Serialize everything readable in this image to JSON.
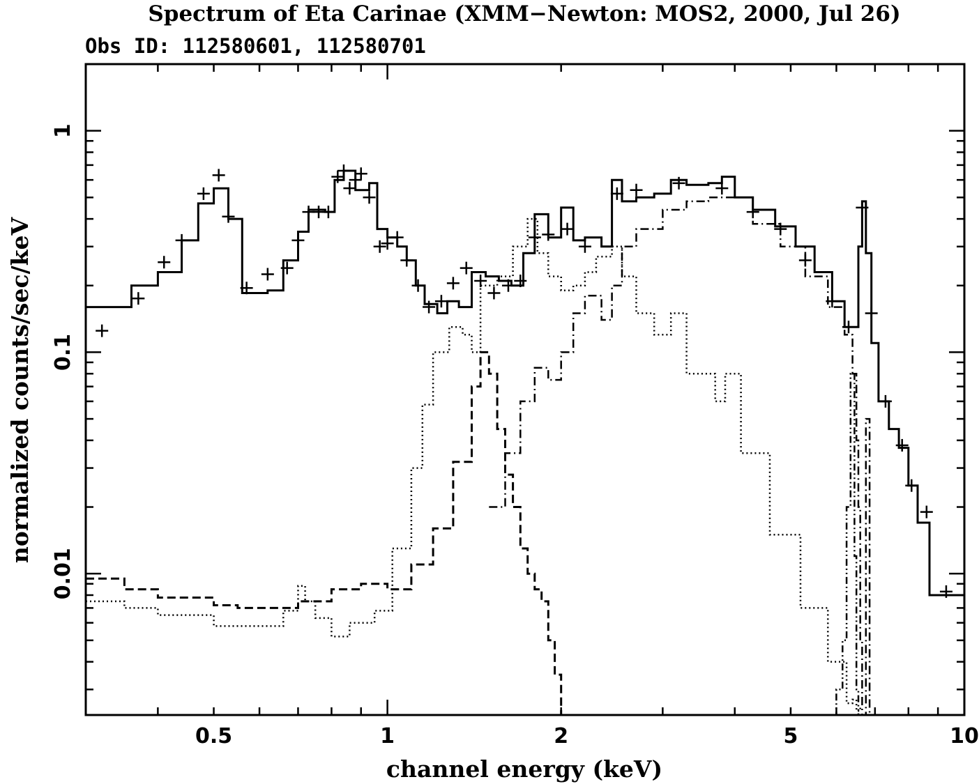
{
  "chart_data": {
    "type": "line",
    "title": "Spectrum of Eta Carinae (XMM−Newton: MOS2, 2000, Jul 26)",
    "subtitle": "Obs ID: 112580601, 112580701",
    "xlabel": "channel energy (keV)",
    "ylabel": "normalized counts/sec/keV",
    "x_scale": "log",
    "y_scale": "log",
    "xlim": [
      0.3,
      10
    ],
    "ylim": [
      0.0023,
      2
    ],
    "x_ticks": [
      {
        "value": 0.5,
        "label": "0.5"
      },
      {
        "value": 1,
        "label": "1"
      },
      {
        "value": 2,
        "label": "2"
      },
      {
        "value": 5,
        "label": "5"
      },
      {
        "value": 10,
        "label": "10"
      }
    ],
    "y_ticks": [
      {
        "value": 0.01,
        "label": "0.01"
      },
      {
        "value": 0.1,
        "label": "0.1"
      },
      {
        "value": 1,
        "label": "1"
      }
    ],
    "grid": false,
    "legend": "none",
    "data_points": [
      [
        0.32,
        0.125
      ],
      [
        0.37,
        0.175
      ],
      [
        0.41,
        0.255
      ],
      [
        0.44,
        0.32
      ],
      [
        0.48,
        0.52
      ],
      [
        0.51,
        0.63
      ],
      [
        0.53,
        0.41
      ],
      [
        0.57,
        0.195
      ],
      [
        0.62,
        0.225
      ],
      [
        0.67,
        0.24
      ],
      [
        0.7,
        0.32
      ],
      [
        0.73,
        0.43
      ],
      [
        0.76,
        0.43
      ],
      [
        0.79,
        0.43
      ],
      [
        0.82,
        0.62
      ],
      [
        0.84,
        0.66
      ],
      [
        0.86,
        0.55
      ],
      [
        0.88,
        0.6
      ],
      [
        0.9,
        0.64
      ],
      [
        0.93,
        0.5
      ],
      [
        0.97,
        0.3
      ],
      [
        1.0,
        0.31
      ],
      [
        1.04,
        0.33
      ],
      [
        1.08,
        0.26
      ],
      [
        1.13,
        0.2
      ],
      [
        1.18,
        0.16
      ],
      [
        1.24,
        0.17
      ],
      [
        1.3,
        0.205
      ],
      [
        1.37,
        0.24
      ],
      [
        1.45,
        0.21
      ],
      [
        1.53,
        0.185
      ],
      [
        1.62,
        0.2
      ],
      [
        1.7,
        0.21
      ],
      [
        1.8,
        0.33
      ],
      [
        1.9,
        0.34
      ],
      [
        2.05,
        0.36
      ],
      [
        2.2,
        0.3
      ],
      [
        2.5,
        0.52
      ],
      [
        2.7,
        0.54
      ],
      [
        3.2,
        0.58
      ],
      [
        3.8,
        0.55
      ],
      [
        4.3,
        0.43
      ],
      [
        4.8,
        0.36
      ],
      [
        5.3,
        0.26
      ],
      [
        5.9,
        0.17
      ],
      [
        6.3,
        0.13
      ],
      [
        6.65,
        0.45
      ],
      [
        6.9,
        0.15
      ],
      [
        7.3,
        0.06
      ],
      [
        7.8,
        0.038
      ],
      [
        8.1,
        0.025
      ],
      [
        8.6,
        0.019
      ],
      [
        9.3,
        0.0083
      ]
    ],
    "series": [
      {
        "style": "solid",
        "x": [
          0.3,
          0.36,
          0.4,
          0.44,
          0.47,
          0.5,
          0.53,
          0.56,
          0.62,
          0.66,
          0.7,
          0.73,
          0.78,
          0.81,
          0.84,
          0.88,
          0.93,
          0.96,
          1.0,
          1.04,
          1.08,
          1.12,
          1.16,
          1.22,
          1.27,
          1.33,
          1.4,
          1.48,
          1.56,
          1.64,
          1.72,
          1.8,
          1.9,
          2.0,
          2.1,
          2.2,
          2.35,
          2.45,
          2.55,
          2.7,
          2.9,
          3.1,
          3.3,
          3.6,
          3.8,
          4.0,
          4.3,
          4.7,
          5.1,
          5.5,
          5.9,
          6.2,
          6.4,
          6.55,
          6.65,
          6.75,
          6.9,
          7.1,
          7.4,
          7.7,
          8.0,
          8.3,
          8.7,
          9.0,
          10.0
        ],
        "y": [
          0.16,
          0.2,
          0.23,
          0.32,
          0.47,
          0.55,
          0.4,
          0.185,
          0.19,
          0.26,
          0.35,
          0.44,
          0.43,
          0.6,
          0.66,
          0.54,
          0.58,
          0.36,
          0.33,
          0.3,
          0.26,
          0.2,
          0.165,
          0.15,
          0.17,
          0.16,
          0.23,
          0.22,
          0.21,
          0.2,
          0.28,
          0.42,
          0.33,
          0.45,
          0.32,
          0.33,
          0.3,
          0.6,
          0.48,
          0.5,
          0.52,
          0.6,
          0.57,
          0.58,
          0.62,
          0.5,
          0.44,
          0.37,
          0.3,
          0.23,
          0.17,
          0.13,
          0.13,
          0.3,
          0.48,
          0.28,
          0.11,
          0.06,
          0.045,
          0.037,
          0.025,
          0.017,
          0.008,
          0.008,
          0.008
        ]
      },
      {
        "style": "dotted",
        "x": [
          0.3,
          0.35,
          0.4,
          0.5,
          0.55,
          0.62,
          0.66,
          0.7,
          0.72,
          0.75,
          0.8,
          0.86,
          0.95,
          1.02,
          1.1,
          1.15,
          1.2,
          1.28,
          1.35,
          1.4,
          1.45,
          1.55,
          1.65,
          1.75,
          1.82,
          1.9,
          2.0,
          2.1,
          2.2,
          2.3,
          2.45,
          2.55,
          2.7,
          2.9,
          3.1,
          3.3,
          3.7,
          3.85,
          4.1,
          4.6,
          5.2,
          5.8,
          6.25,
          6.4,
          6.5,
          6.6
        ],
        "y": [
          0.0075,
          0.007,
          0.0065,
          0.0058,
          0.0058,
          0.0058,
          0.0068,
          0.0088,
          0.0075,
          0.0063,
          0.0052,
          0.006,
          0.0068,
          0.013,
          0.03,
          0.058,
          0.1,
          0.13,
          0.12,
          0.1,
          0.2,
          0.22,
          0.3,
          0.4,
          0.28,
          0.22,
          0.19,
          0.2,
          0.23,
          0.27,
          0.3,
          0.22,
          0.15,
          0.12,
          0.15,
          0.08,
          0.06,
          0.08,
          0.035,
          0.015,
          0.007,
          0.004,
          0.0026,
          0.0027,
          0.0024,
          0.0025
        ]
      },
      {
        "style": "dashed",
        "x": [
          0.3,
          0.35,
          0.4,
          0.5,
          0.55,
          0.62,
          0.7,
          0.8,
          0.9,
          1.0,
          1.1,
          1.2,
          1.3,
          1.4,
          1.45,
          1.5,
          1.55,
          1.6,
          1.65,
          1.7,
          1.75,
          1.8,
          1.85,
          1.9,
          1.95,
          2.0
        ],
        "y": [
          0.0095,
          0.0085,
          0.0078,
          0.0072,
          0.007,
          0.007,
          0.0075,
          0.0085,
          0.009,
          0.0085,
          0.011,
          0.016,
          0.032,
          0.07,
          0.1,
          0.08,
          0.045,
          0.028,
          0.02,
          0.013,
          0.01,
          0.0085,
          0.0075,
          0.005,
          0.0035,
          0.0023
        ]
      },
      {
        "style": "dash-dot",
        "x": [
          1.5,
          1.6,
          1.7,
          1.8,
          1.9,
          2.0,
          2.1,
          2.2,
          2.35,
          2.45,
          2.55,
          2.7,
          3.0,
          3.3,
          3.6,
          3.8,
          4.0,
          4.3,
          4.8,
          5.3,
          5.8,
          6.2,
          6.4,
          6.5,
          6.55,
          6.6,
          6.65,
          6.75,
          6.85
        ],
        "y": [
          0.02,
          0.035,
          0.06,
          0.085,
          0.075,
          0.1,
          0.15,
          0.18,
          0.14,
          0.2,
          0.3,
          0.36,
          0.44,
          0.48,
          0.5,
          0.5,
          0.5,
          0.38,
          0.3,
          0.22,
          0.16,
          0.12,
          0.08,
          0.04,
          0.02,
          0.005,
          0.0023,
          0.05,
          0.0023
        ]
      },
      {
        "style": "dash-dot-dot",
        "x": [
          5.5,
          5.8,
          6.0,
          6.15,
          6.25,
          6.35,
          6.45,
          6.5,
          6.55,
          6.6
        ],
        "y": [
          0.0023,
          0.0023,
          0.003,
          0.005,
          0.02,
          0.08,
          0.012,
          0.003,
          0.0023,
          0.0023
        ]
      }
    ]
  }
}
